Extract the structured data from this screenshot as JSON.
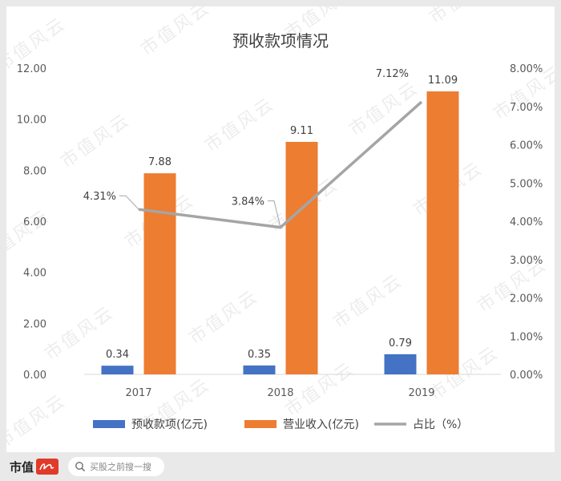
{
  "chart_data": {
    "type": "bar",
    "title": "预收款项情况",
    "categories": [
      "2017",
      "2018",
      "2019"
    ],
    "series": [
      {
        "name": "预收款项(亿元)",
        "kind": "bar",
        "axis": "left",
        "color": "#4472c4",
        "values": [
          0.34,
          0.35,
          0.79
        ],
        "labels": [
          "0.34",
          "0.35",
          "0.79"
        ]
      },
      {
        "name": "营业收入(亿元)",
        "kind": "bar",
        "axis": "left",
        "color": "#ed7d31",
        "values": [
          7.88,
          9.11,
          11.09
        ],
        "labels": [
          "7.88",
          "9.11",
          "11.09"
        ]
      },
      {
        "name": "占比（%）",
        "kind": "line",
        "axis": "right",
        "color": "#a5a5a5",
        "values": [
          4.31,
          3.84,
          7.12
        ],
        "labels": [
          "4.31%",
          "3.84%",
          "7.12%"
        ]
      }
    ],
    "y_left": {
      "min": 0,
      "max": 12,
      "ticks": [
        "0.00",
        "2.00",
        "4.00",
        "6.00",
        "8.00",
        "10.00",
        "12.00"
      ]
    },
    "y_right": {
      "min": 0,
      "max": 8,
      "ticks": [
        "0.00%",
        "1.00%",
        "2.00%",
        "3.00%",
        "4.00%",
        "5.00%",
        "6.00%",
        "7.00%",
        "8.00%"
      ]
    },
    "legend": "bottom",
    "grid": false
  },
  "watermark": "市值风云",
  "footer": {
    "brand": "市值",
    "search_placeholder": "买股之前搜一搜"
  },
  "icons": {
    "search": "search-icon",
    "logo": "brand-logo-icon"
  }
}
